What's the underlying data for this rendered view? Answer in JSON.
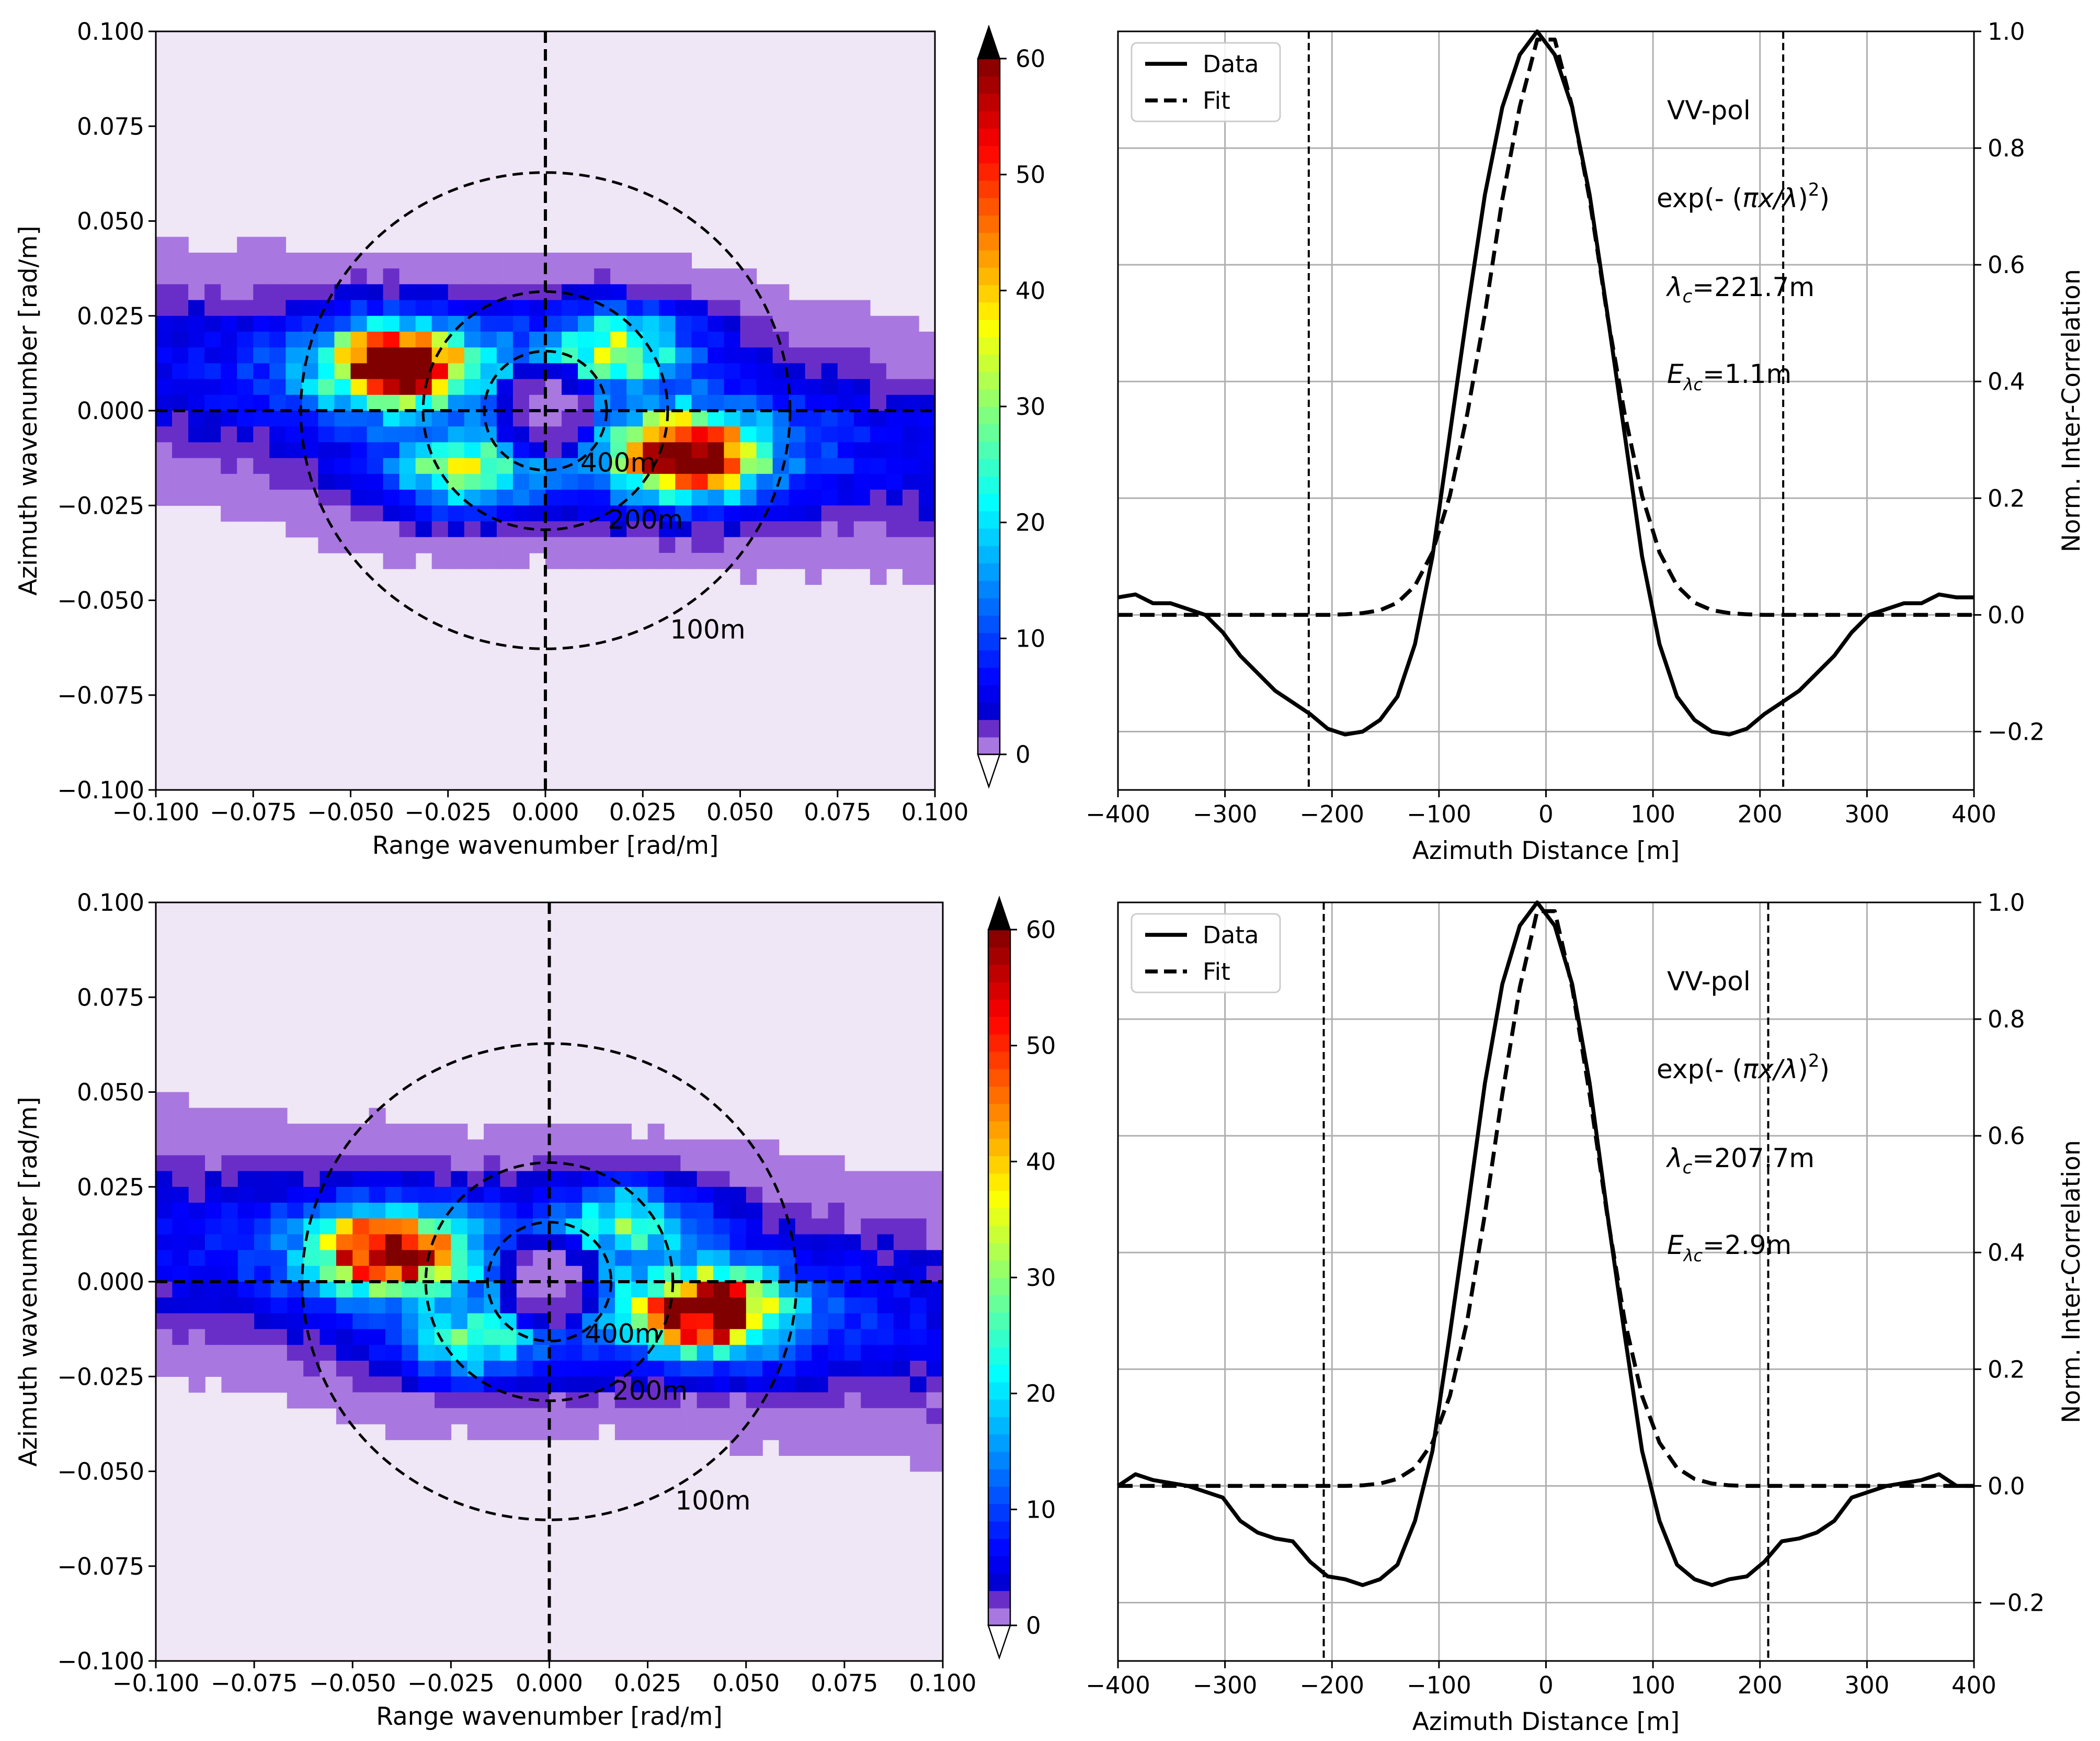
{
  "chart_data": [
    {
      "type": "heatmap",
      "title": "",
      "xlabel": "Range wavenumber [rad/m]",
      "ylabel": "Azimuth wavenumber [rad/m]",
      "xlim": [
        -0.1,
        0.1
      ],
      "ylim": [
        -0.1,
        0.1
      ],
      "xticks": [
        -0.1,
        -0.075,
        -0.05,
        -0.025,
        0.0,
        0.025,
        0.05,
        0.075,
        0.1
      ],
      "yticks": [
        -0.1,
        -0.075,
        -0.05,
        -0.025,
        0.0,
        0.025,
        0.05,
        0.075,
        0.1
      ],
      "xtick_labels": [
        "−0.100",
        "−0.075",
        "−0.050",
        "−0.025",
        "0.000",
        "0.025",
        "0.050",
        "0.075",
        "0.100"
      ],
      "ytick_labels": [
        "−0.100",
        "−0.075",
        "−0.050",
        "−0.025",
        "0.000",
        "0.025",
        "0.050",
        "0.075",
        "0.100"
      ],
      "colorbar": {
        "min": 0,
        "max": 60,
        "extend": "both",
        "tick_values": [
          0,
          10,
          20,
          30,
          40,
          50,
          60
        ],
        "tick_labels": [
          "0",
          "10",
          "20",
          "30",
          "40",
          "50",
          "60"
        ]
      },
      "peaks": [
        {
          "kx": -0.038,
          "ky": 0.012,
          "value": 57
        },
        {
          "kx": 0.037,
          "ky": -0.012,
          "value": 58
        },
        {
          "kx": -0.021,
          "ky": -0.016,
          "value": 25
        },
        {
          "kx": 0.019,
          "ky": 0.017,
          "value": 24
        }
      ],
      "band_center_ky": 0.0,
      "band_halfwidth_ky": 0.03,
      "circles": [
        {
          "label": "400m",
          "radius": 0.0157,
          "label_kx": 0.009,
          "label_ky": -0.014
        },
        {
          "label": "200m",
          "radius": 0.0314,
          "label_kx": 0.016,
          "label_ky": -0.029
        },
        {
          "label": "100m",
          "radius": 0.0628,
          "label_kx": 0.032,
          "label_ky": -0.058
        }
      ]
    },
    {
      "type": "line",
      "title": "",
      "xlabel": "Azimuth Distance [m]",
      "ylabel": "Norm. Inter-Correlation",
      "xlim": [
        -400,
        400
      ],
      "ylim": [
        -0.3,
        1.0
      ],
      "xticks": [
        -400,
        -300,
        -200,
        -100,
        0,
        100,
        200,
        300,
        400
      ],
      "yticks": [
        -0.2,
        0.0,
        0.2,
        0.4,
        0.6,
        0.8,
        1.0
      ],
      "xtick_labels": [
        "−400",
        "−300",
        "−200",
        "−100",
        "0",
        "100",
        "200",
        "300",
        "400"
      ],
      "ytick_labels": [
        "−0.2",
        "0.0",
        "0.2",
        "0.4",
        "0.6",
        "0.8",
        "1.0"
      ],
      "grid": true,
      "legend": {
        "position": "top-left",
        "entries": [
          "Data",
          "Fit"
        ]
      },
      "annotations": {
        "pol": "VV-pol",
        "formula_prefix": "exp(- (",
        "formula_body": "πx/λ",
        "formula_suffix": ")",
        "formula_power": "2",
        "lambda_prefix": "λ",
        "lambda_sub": "c",
        "lambda_value": "=221.7m",
        "error_prefix": "E",
        "error_sub": "λc",
        "error_value": "=1.1m"
      },
      "lambda_c": 221.7,
      "vlines": [
        -221.7,
        221.7
      ],
      "x": [
        -400,
        -383.7,
        -367.3,
        -351,
        -334.7,
        -318.4,
        -302,
        -285.7,
        -269.4,
        -253.1,
        -236.7,
        -220.4,
        -204.1,
        -187.8,
        -171.4,
        -155.1,
        -138.8,
        -122.4,
        -106.1,
        -89.8,
        -73.5,
        -57.1,
        -40.8,
        -24.5,
        -8.2,
        8.2,
        24.5,
        40.8,
        57.1,
        73.5,
        89.8,
        106.1,
        122.4,
        138.8,
        155.1,
        171.4,
        187.8,
        204.1,
        220.4,
        236.7,
        253.1,
        269.4,
        285.7,
        302,
        318.4,
        334.7,
        351,
        367.3,
        383.7,
        400
      ],
      "series": [
        {
          "name": "Data",
          "style": "solid",
          "values": [
            0.03,
            0.035,
            0.02,
            0.02,
            0.01,
            0.0,
            -0.03,
            -0.07,
            -0.1,
            -0.13,
            -0.15,
            -0.17,
            -0.195,
            -0.205,
            -0.2,
            -0.18,
            -0.14,
            -0.05,
            0.1,
            0.31,
            0.52,
            0.72,
            0.87,
            0.96,
            1.0,
            0.96,
            0.87,
            0.72,
            0.52,
            0.31,
            0.1,
            -0.05,
            -0.14,
            -0.18,
            -0.2,
            -0.205,
            -0.195,
            -0.17,
            -0.15,
            -0.13,
            -0.1,
            -0.07,
            -0.03,
            0.0,
            0.01,
            0.02,
            0.02,
            0.035,
            0.03,
            0.03
          ]
        },
        {
          "name": "Fit",
          "style": "dashed",
          "values": [
            0.0,
            0.0,
            0.0,
            0.0,
            0.0,
            0.0,
            0.0,
            0.0,
            0.0,
            0.0,
            0.0,
            0.0,
            0.0,
            0.001,
            0.003,
            0.008,
            0.021,
            0.05,
            0.107,
            0.204,
            0.345,
            0.516,
            0.712,
            0.871,
            0.986,
            0.986,
            0.871,
            0.712,
            0.516,
            0.345,
            0.204,
            0.107,
            0.05,
            0.021,
            0.008,
            0.003,
            0.001,
            0.0,
            0.0,
            0.0,
            0.0,
            0.0,
            0.0,
            0.0,
            0.0,
            0.0,
            0.0,
            0.0,
            0.0,
            0.0
          ]
        }
      ]
    },
    {
      "type": "heatmap",
      "title": "",
      "xlabel": "Range wavenumber [rad/m]",
      "ylabel": "Azimuth wavenumber [rad/m]",
      "xlim": [
        -0.1,
        0.1
      ],
      "ylim": [
        -0.1,
        0.1
      ],
      "xticks": [
        -0.1,
        -0.075,
        -0.05,
        -0.025,
        0.0,
        0.025,
        0.05,
        0.075,
        0.1
      ],
      "yticks": [
        -0.1,
        -0.075,
        -0.05,
        -0.025,
        0.0,
        0.025,
        0.05,
        0.075,
        0.1
      ],
      "xtick_labels": [
        "−0.100",
        "−0.075",
        "−0.050",
        "−0.025",
        "0.000",
        "0.025",
        "0.050",
        "0.075",
        "0.100"
      ],
      "ytick_labels": [
        "−0.100",
        "−0.075",
        "−0.050",
        "−0.025",
        "0.000",
        "0.025",
        "0.050",
        "0.075",
        "0.100"
      ],
      "colorbar": {
        "min": 0,
        "max": 60,
        "extend": "both",
        "tick_values": [
          0,
          10,
          20,
          30,
          40,
          50,
          60
        ],
        "tick_labels": [
          "0",
          "10",
          "20",
          "30",
          "40",
          "50",
          "60"
        ]
      },
      "peaks": [
        {
          "kx": -0.041,
          "ky": 0.008,
          "value": 54
        },
        {
          "kx": 0.04,
          "ky": -0.008,
          "value": 54
        },
        {
          "kx": -0.02,
          "ky": -0.016,
          "value": 18
        },
        {
          "kx": 0.02,
          "ky": 0.016,
          "value": 18
        }
      ],
      "band_center_ky": 0.0,
      "band_halfwidth_ky": 0.032,
      "circles": [
        {
          "label": "400m",
          "radius": 0.0157,
          "label_kx": 0.009,
          "label_ky": -0.014
        },
        {
          "label": "200m",
          "radius": 0.0314,
          "label_kx": 0.016,
          "label_ky": -0.029
        },
        {
          "label": "100m",
          "radius": 0.0628,
          "label_kx": 0.032,
          "label_ky": -0.058
        }
      ]
    },
    {
      "type": "line",
      "title": "",
      "xlabel": "Azimuth Distance [m]",
      "ylabel": "Norm. Inter-Correlation",
      "xlim": [
        -400,
        400
      ],
      "ylim": [
        -0.3,
        1.0
      ],
      "xticks": [
        -400,
        -300,
        -200,
        -100,
        0,
        100,
        200,
        300,
        400
      ],
      "yticks": [
        -0.2,
        0.0,
        0.2,
        0.4,
        0.6,
        0.8,
        1.0
      ],
      "xtick_labels": [
        "−400",
        "−300",
        "−200",
        "−100",
        "0",
        "100",
        "200",
        "300",
        "400"
      ],
      "ytick_labels": [
        "−0.2",
        "0.0",
        "0.2",
        "0.4",
        "0.6",
        "0.8",
        "1.0"
      ],
      "grid": true,
      "legend": {
        "position": "top-left",
        "entries": [
          "Data",
          "Fit"
        ]
      },
      "annotations": {
        "pol": "VV-pol",
        "formula_prefix": "exp(- (",
        "formula_body": "πx/λ",
        "formula_suffix": ")",
        "formula_power": "2",
        "lambda_prefix": "λ",
        "lambda_sub": "c",
        "lambda_value": "=207.7m",
        "error_prefix": "E",
        "error_sub": "λc",
        "error_value": "=2.9m"
      },
      "lambda_c": 207.7,
      "vlines": [
        -207.7,
        207.7
      ],
      "x": [
        -400,
        -383.7,
        -367.3,
        -351,
        -334.7,
        -318.4,
        -302,
        -285.7,
        -269.4,
        -253.1,
        -236.7,
        -220.4,
        -204.1,
        -187.8,
        -171.4,
        -155.1,
        -138.8,
        -122.4,
        -106.1,
        -89.8,
        -73.5,
        -57.1,
        -40.8,
        -24.5,
        -8.2,
        8.2,
        24.5,
        40.8,
        57.1,
        73.5,
        89.8,
        106.1,
        122.4,
        138.8,
        155.1,
        171.4,
        187.8,
        204.1,
        220.4,
        236.7,
        253.1,
        269.4,
        285.7,
        302,
        318.4,
        334.7,
        351,
        367.3,
        383.7,
        400
      ],
      "series": [
        {
          "name": "Data",
          "style": "solid",
          "values": [
            0.0,
            0.02,
            0.01,
            0.005,
            0.0,
            -0.01,
            -0.02,
            -0.06,
            -0.08,
            -0.09,
            -0.095,
            -0.13,
            -0.155,
            -0.16,
            -0.17,
            -0.16,
            -0.135,
            -0.06,
            0.06,
            0.26,
            0.47,
            0.69,
            0.86,
            0.96,
            1.0,
            0.96,
            0.86,
            0.69,
            0.47,
            0.26,
            0.06,
            -0.06,
            -0.135,
            -0.16,
            -0.17,
            -0.16,
            -0.155,
            -0.13,
            -0.095,
            -0.09,
            -0.08,
            -0.06,
            -0.02,
            -0.01,
            0.0,
            0.005,
            0.01,
            0.02,
            0.0,
            0.0
          ]
        },
        {
          "name": "Fit",
          "style": "dashed",
          "values": [
            0.0,
            0.0,
            0.0,
            0.0,
            0.0,
            0.0,
            0.0,
            0.0,
            0.0,
            0.0,
            0.0,
            0.0,
            0.0,
            0.0,
            0.001,
            0.004,
            0.012,
            0.031,
            0.074,
            0.154,
            0.284,
            0.466,
            0.671,
            0.854,
            0.985,
            0.985,
            0.854,
            0.671,
            0.466,
            0.284,
            0.154,
            0.074,
            0.031,
            0.012,
            0.004,
            0.001,
            0.0,
            0.0,
            0.0,
            0.0,
            0.0,
            0.0,
            0.0,
            0.0,
            0.0,
            0.0,
            0.0,
            0.0,
            0.0,
            0.0
          ]
        }
      ]
    }
  ]
}
